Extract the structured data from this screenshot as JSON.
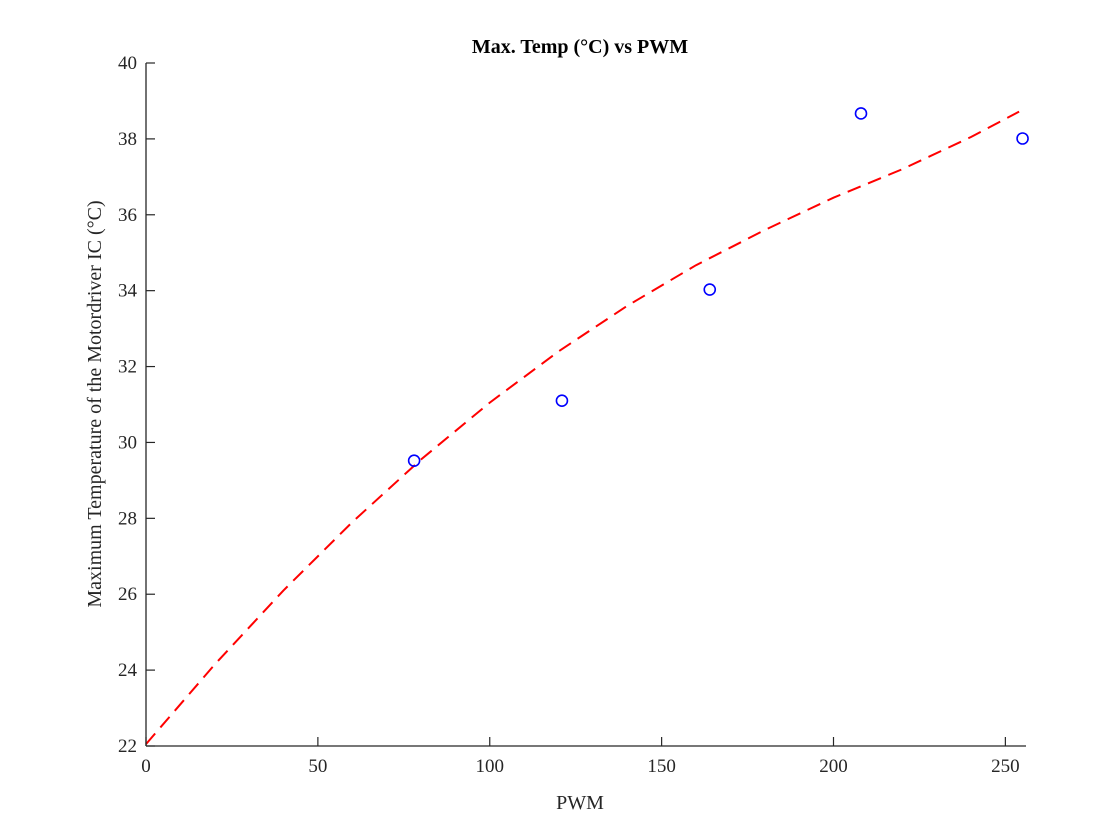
{
  "chart_data": {
    "type": "scatter",
    "title": "Max. Temp (°C) vs PWM",
    "xlabel": "PWM",
    "ylabel": "Maximum Temperature of the Motordriver IC (°C)",
    "xlim": [
      0,
      256
    ],
    "ylim": [
      22,
      40
    ],
    "xticks": [
      0,
      50,
      100,
      150,
      200,
      250
    ],
    "yticks": [
      22,
      24,
      26,
      28,
      30,
      32,
      34,
      36,
      38,
      40
    ],
    "grid": false,
    "series": [
      {
        "type": "scatter",
        "marker": "circle",
        "color": "#0000ff",
        "x": [
          78,
          121,
          164,
          208,
          255
        ],
        "y": [
          29.52,
          31.1,
          34.03,
          38.67,
          38.01
        ]
      },
      {
        "type": "line",
        "style": "dashed",
        "color": "#ff0000",
        "x": [
          0,
          20,
          40,
          60,
          80,
          100,
          120,
          140,
          160,
          180,
          200,
          220,
          240,
          254
        ],
        "y": [
          22.05,
          24.15,
          26.1,
          27.9,
          29.55,
          31.05,
          32.4,
          33.6,
          34.67,
          35.6,
          36.45,
          37.2,
          38.05,
          38.72
        ]
      }
    ],
    "colors": {
      "axis": "#262626",
      "points": "#0000ff",
      "fit": "#ff0000"
    }
  }
}
